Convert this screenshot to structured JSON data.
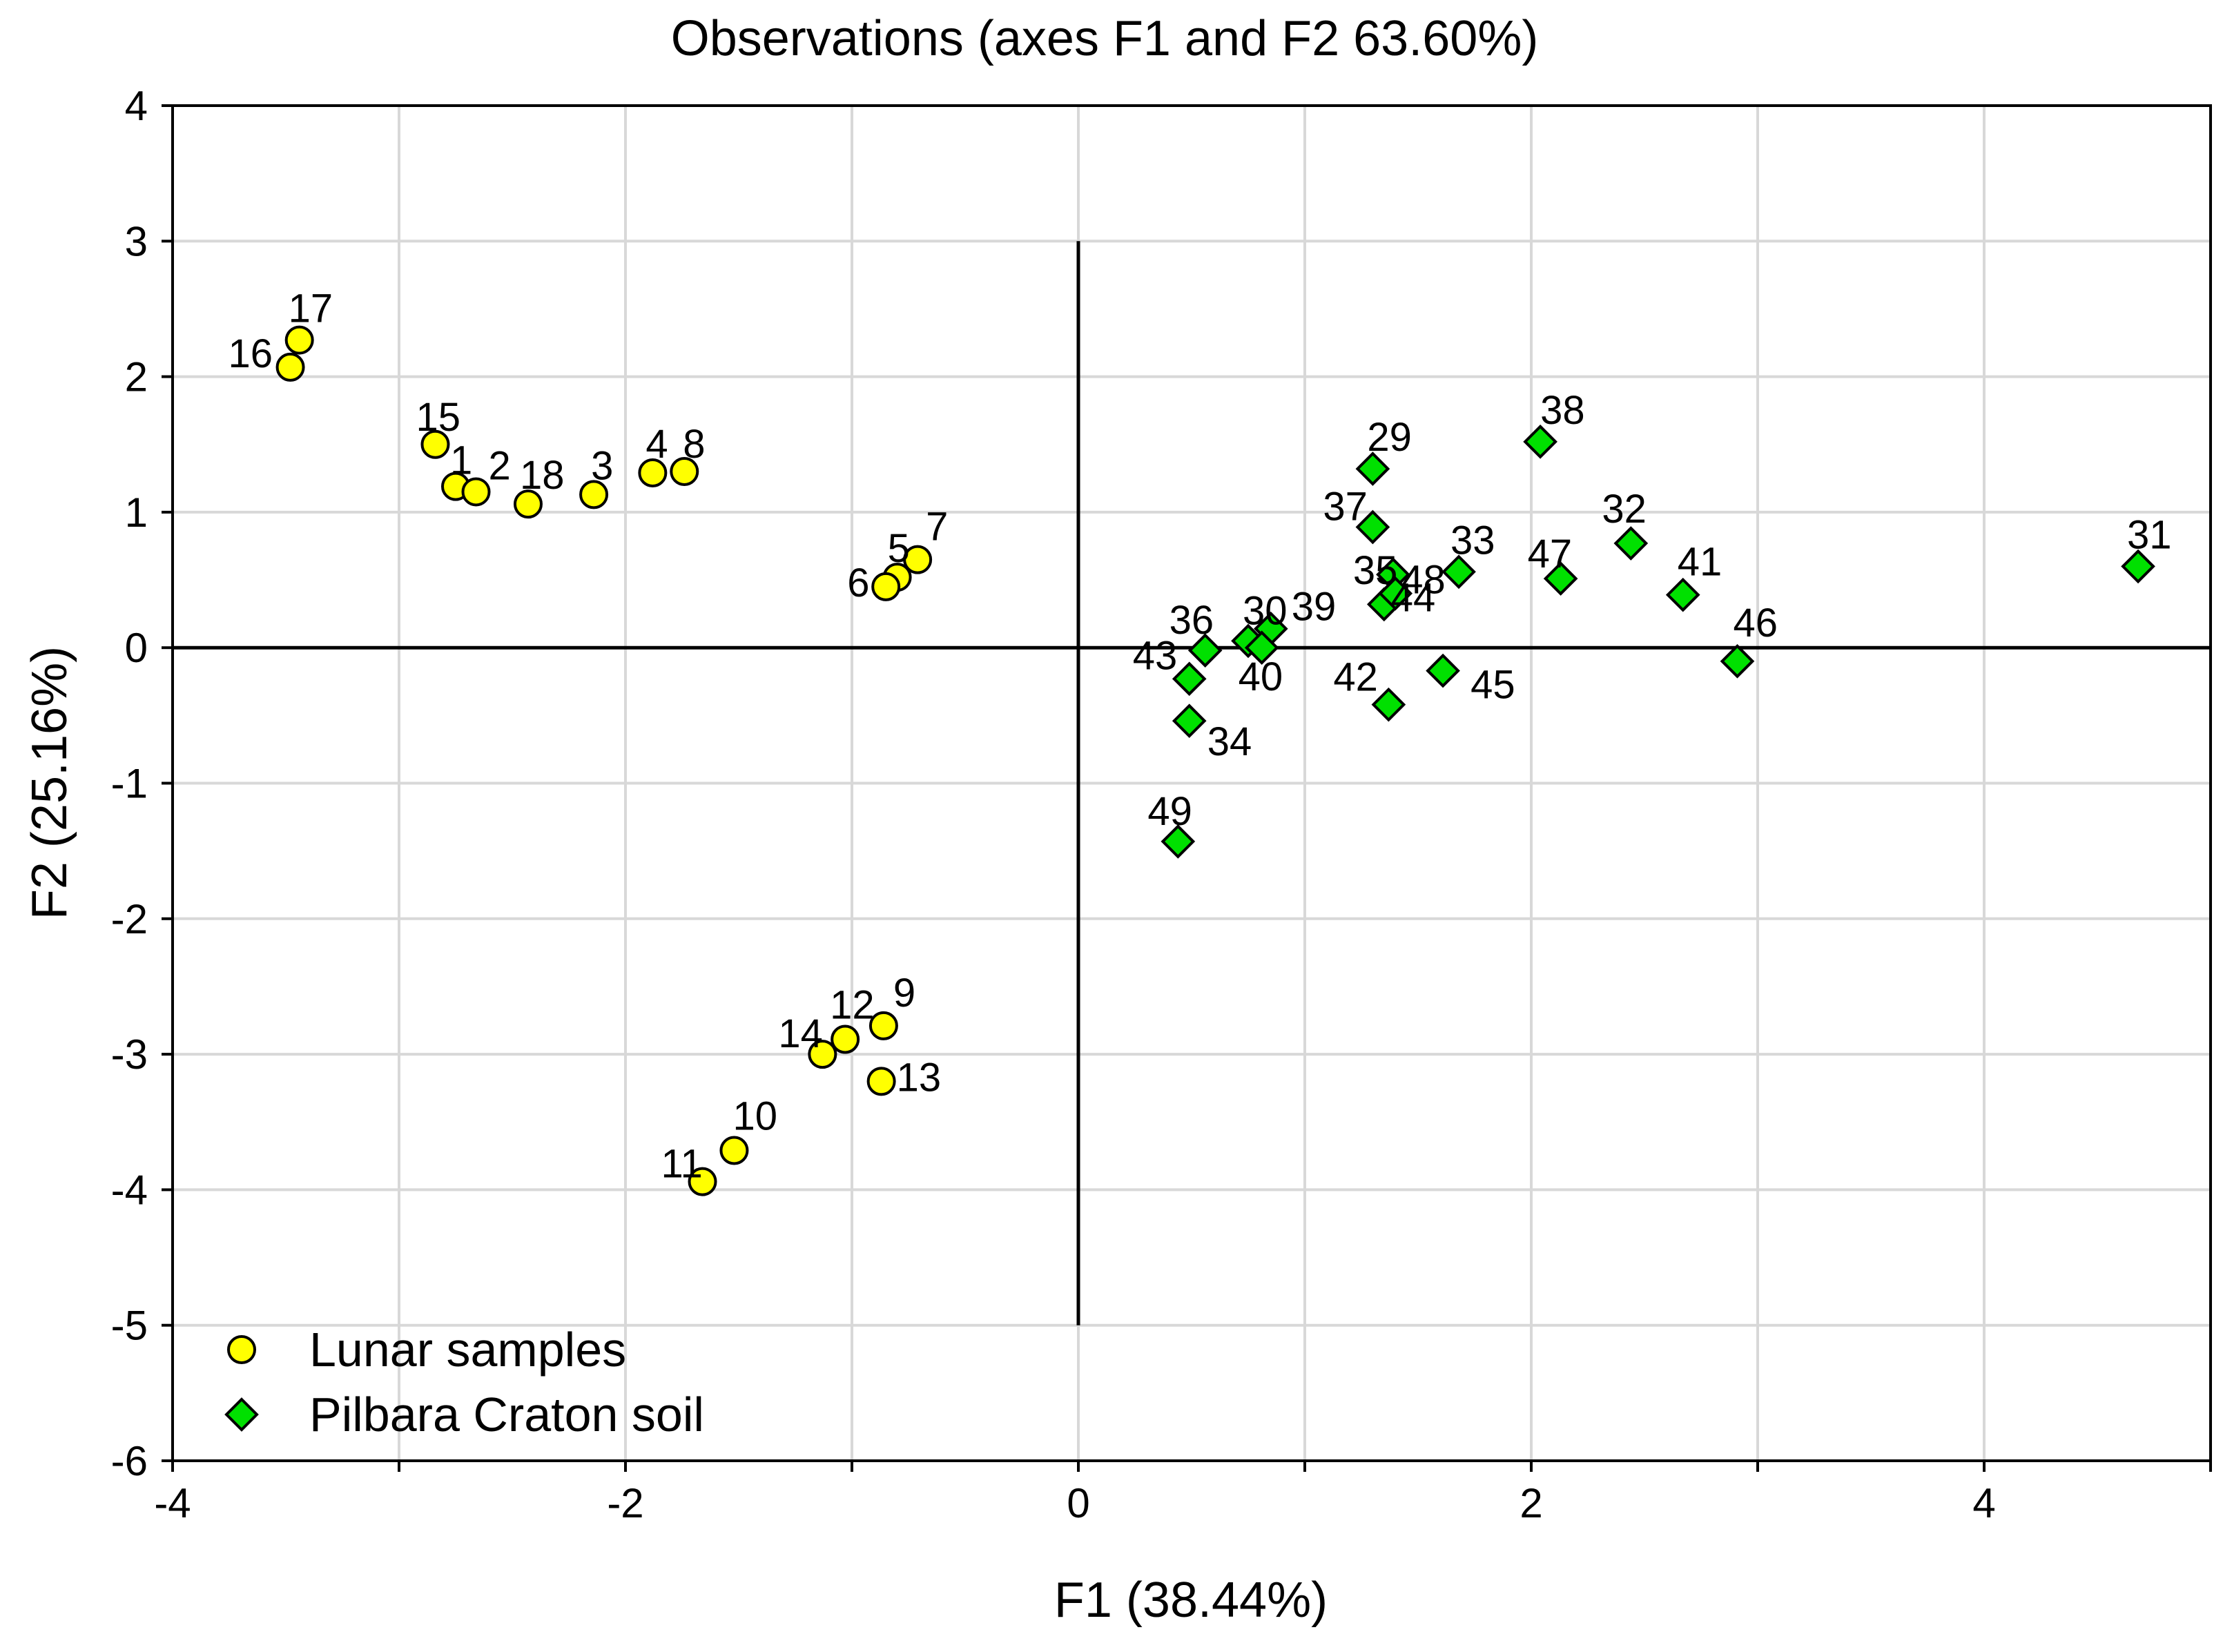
{
  "chart_data": {
    "type": "scatter",
    "title": "Observations (axes F1 and F2 63.60%)",
    "xlabel": "F1 (38.44%)",
    "ylabel": "F2 (25.16%)",
    "xlim": [
      -4,
      5
    ],
    "ylim": [
      -6,
      4
    ],
    "xticks": [
      -4,
      -2,
      0,
      2,
      4
    ],
    "yticks": [
      4,
      3,
      2,
      1,
      0,
      -1,
      -2,
      -3,
      -4,
      -5,
      -6
    ],
    "grid": true,
    "legend_position": "bottom-left",
    "colors": {
      "lunar": "#ffff00",
      "pilbara": "#00e000",
      "grid": "#d8d8d8",
      "edge": "#000000"
    },
    "series": [
      {
        "name": "Lunar samples",
        "marker": "circle",
        "points": [
          {
            "label": "1",
            "x": -2.75,
            "y": 1.19
          },
          {
            "label": "2",
            "x": -2.66,
            "y": 1.15
          },
          {
            "label": "3",
            "x": -2.14,
            "y": 1.13
          },
          {
            "label": "4",
            "x": -1.88,
            "y": 1.29
          },
          {
            "label": "5",
            "x": -0.8,
            "y": 0.52
          },
          {
            "label": "6",
            "x": -0.85,
            "y": 0.45
          },
          {
            "label": "7",
            "x": -0.71,
            "y": 0.65
          },
          {
            "label": "8",
            "x": -1.74,
            "y": 1.3
          },
          {
            "label": "9",
            "x": -0.86,
            "y": -2.79
          },
          {
            "label": "10",
            "x": -1.52,
            "y": -3.71
          },
          {
            "label": "11",
            "x": -1.66,
            "y": -3.94
          },
          {
            "label": "12",
            "x": -1.03,
            "y": -2.89
          },
          {
            "label": "13",
            "x": -0.87,
            "y": -3.2
          },
          {
            "label": "14",
            "x": -1.13,
            "y": -3.0
          },
          {
            "label": "15",
            "x": -2.84,
            "y": 1.5
          },
          {
            "label": "16",
            "x": -3.48,
            "y": 2.07
          },
          {
            "label": "17",
            "x": -3.44,
            "y": 2.27
          },
          {
            "label": "18",
            "x": -2.43,
            "y": 1.06
          }
        ]
      },
      {
        "name": "Pilbara Craton soil",
        "marker": "diamond",
        "points": [
          {
            "label": "29",
            "x": 1.3,
            "y": 1.32
          },
          {
            "label": "30",
            "x": 0.75,
            "y": 0.05
          },
          {
            "label": "31",
            "x": 4.68,
            "y": 0.6
          },
          {
            "label": "32",
            "x": 2.44,
            "y": 0.77
          },
          {
            "label": "33",
            "x": 1.68,
            "y": 0.56
          },
          {
            "label": "34",
            "x": 0.49,
            "y": -0.54
          },
          {
            "label": "35",
            "x": 1.39,
            "y": 0.54
          },
          {
            "label": "36",
            "x": 0.56,
            "y": -0.02
          },
          {
            "label": "37",
            "x": 1.3,
            "y": 0.89
          },
          {
            "label": "38",
            "x": 2.04,
            "y": 1.52
          },
          {
            "label": "39",
            "x": 0.85,
            "y": 0.14
          },
          {
            "label": "40",
            "x": 0.81,
            "y": 0.0
          },
          {
            "label": "41",
            "x": 2.67,
            "y": 0.39
          },
          {
            "label": "42",
            "x": 1.37,
            "y": -0.42
          },
          {
            "label": "43",
            "x": 0.49,
            "y": -0.23
          },
          {
            "label": "44",
            "x": 1.35,
            "y": 0.32
          },
          {
            "label": "45",
            "x": 1.61,
            "y": -0.17
          },
          {
            "label": "46",
            "x": 2.91,
            "y": -0.1
          },
          {
            "label": "47",
            "x": 2.13,
            "y": 0.51
          },
          {
            "label": "48",
            "x": 1.4,
            "y": 0.4
          },
          {
            "label": "49",
            "x": 0.44,
            "y": -1.43
          }
        ]
      }
    ]
  }
}
